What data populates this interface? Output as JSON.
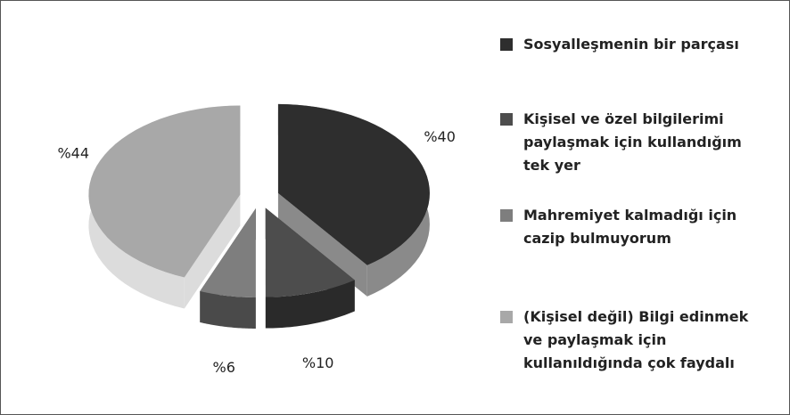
{
  "chart_data": {
    "type": "pie",
    "categories": [
      "Sosyalleşmenin bir parçası",
      "Kişisel ve özel bilgilerimi paylaşmak için kullandığım tek yer",
      "Mahremiyet kalmadığı için cazip bulmuyorum",
      "(Kişisel değil) Bilgi edinmek ve paylaşmak için kullanıldığında çok faydalı"
    ],
    "values": [
      40,
      10,
      6,
      44
    ],
    "value_labels": [
      "%40",
      "%10",
      "%6",
      "%44"
    ],
    "colors": [
      "#2e2e2e",
      "#4d4d4d",
      "#7e7e7e",
      "#a8a8a8"
    ],
    "side_colors": [
      "#8a8a8a",
      "#2a2a2a",
      "#4a4a4a",
      "#dcdcdc"
    ]
  }
}
